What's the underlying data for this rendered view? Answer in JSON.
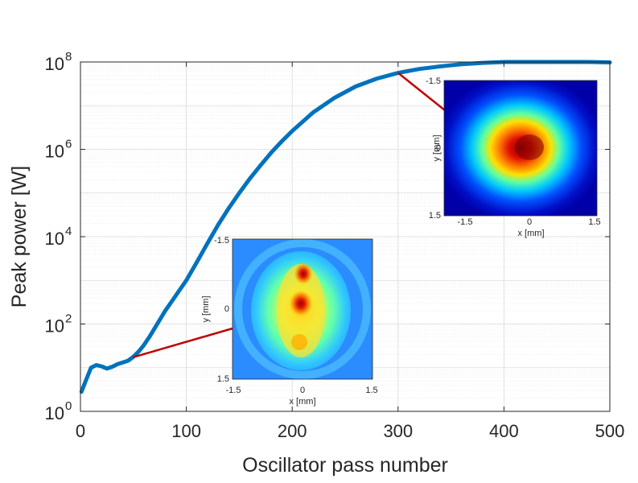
{
  "chart_data": {
    "type": "line",
    "title": "",
    "xlabel": "Oscillator pass number",
    "ylabel": "Peak power [W]",
    "xlim": [
      0,
      500
    ],
    "ylim_log10": [
      0,
      8
    ],
    "yscale": "log",
    "grid": true,
    "x_ticks": [
      0,
      100,
      200,
      300,
      400,
      500
    ],
    "x_tick_labels": [
      "0",
      "100",
      "200",
      "300",
      "400",
      "500"
    ],
    "y_ticks": [
      {
        "base": "10",
        "exp": "0",
        "log10": 0
      },
      {
        "base": "10",
        "exp": "2",
        "log10": 2
      },
      {
        "base": "10",
        "exp": "4",
        "log10": 4
      },
      {
        "base": "10",
        "exp": "6",
        "log10": 6
      },
      {
        "base": "10",
        "exp": "8",
        "log10": 8
      }
    ],
    "series": [
      {
        "name": "Peak power",
        "color": "#0072BD",
        "x": [
          1,
          5,
          10,
          15,
          20,
          25,
          30,
          35,
          40,
          45,
          50,
          55,
          60,
          65,
          70,
          75,
          80,
          90,
          100,
          110,
          120,
          130,
          140,
          150,
          160,
          170,
          180,
          190,
          200,
          220,
          240,
          260,
          280,
          300,
          320,
          340,
          360,
          380,
          400,
          420,
          440,
          460,
          480,
          500
        ],
        "log10_y": [
          0.45,
          0.7,
          1.0,
          1.06,
          1.03,
          0.98,
          1.02,
          1.08,
          1.12,
          1.16,
          1.25,
          1.37,
          1.52,
          1.7,
          1.9,
          2.1,
          2.3,
          2.65,
          3.0,
          3.42,
          3.85,
          4.27,
          4.65,
          5.0,
          5.33,
          5.63,
          5.92,
          6.18,
          6.42,
          6.85,
          7.18,
          7.44,
          7.62,
          7.75,
          7.84,
          7.9,
          7.95,
          7.98,
          8.0,
          8.0,
          8.0,
          8.0,
          8.0,
          7.99
        ]
      }
    ],
    "annotations": [
      {
        "type": "connector-line",
        "color": "#C00000",
        "from_x": 50,
        "from_log10_y": 1.24,
        "to": "inset-early"
      },
      {
        "type": "connector-line",
        "color": "#C00000",
        "from_x": 300,
        "from_log10_y": 7.75,
        "to": "inset-late"
      }
    ],
    "insets": [
      {
        "id": "inset-early",
        "type": "heatmap",
        "description_pass": 50,
        "xlabel": "x [mm]",
        "ylabel": "y [mm]",
        "x_tick_labels": [
          "-1.5",
          "0",
          "1.5"
        ],
        "y_tick_labels": [
          "-1.5",
          "0",
          "1.5"
        ],
        "colormap": "jet"
      },
      {
        "id": "inset-late",
        "type": "heatmap",
        "description_pass": 300,
        "xlabel": "x [mm]",
        "ylabel": "y [mm]",
        "x_tick_labels": [
          "-1.5",
          "0",
          "1.5"
        ],
        "y_tick_labels": [
          "-1.5",
          "0",
          "1.5"
        ],
        "colormap": "jet"
      }
    ]
  }
}
